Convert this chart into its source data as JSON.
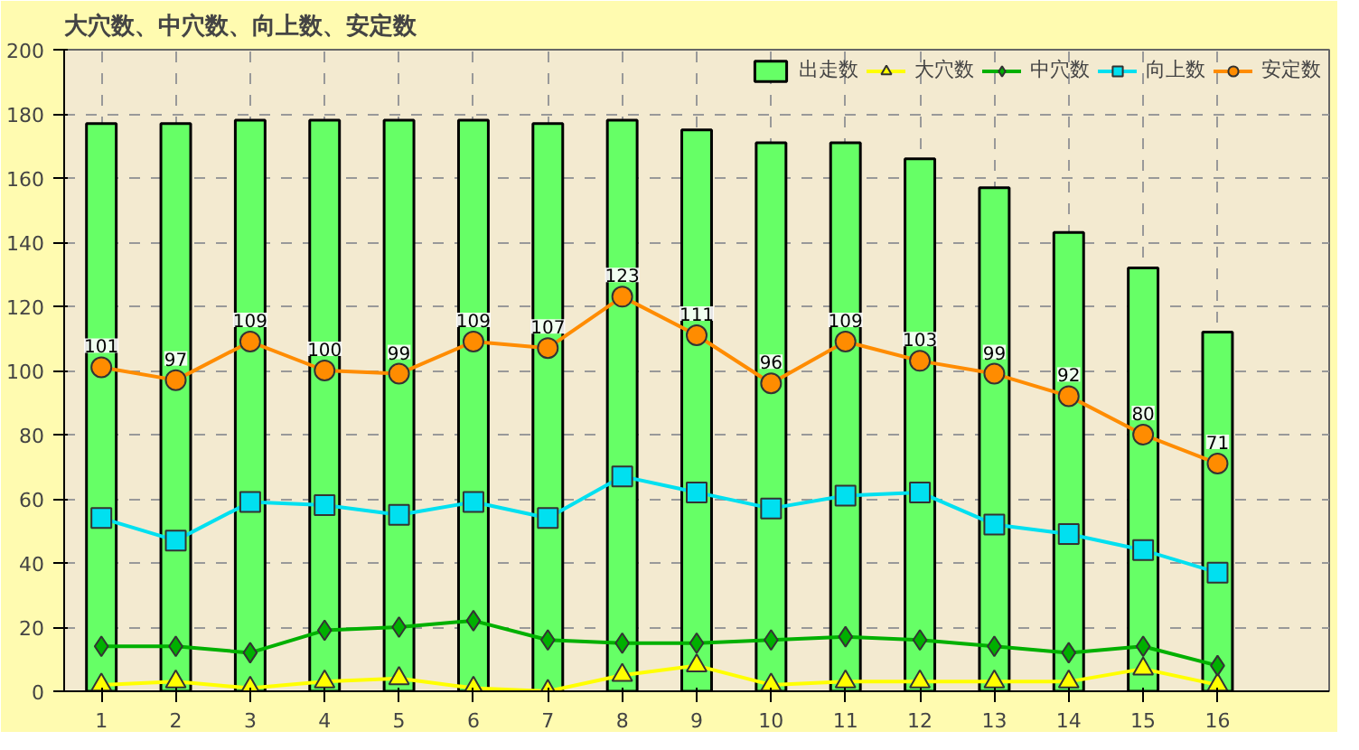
{
  "chart_data": {
    "type": "line",
    "title": "大穴数、中穴数、向上数、安定数",
    "x": [
      1,
      2,
      3,
      4,
      5,
      6,
      7,
      8,
      9,
      10,
      11,
      12,
      13,
      14,
      15,
      16
    ],
    "xlim": [
      0.5,
      17.5
    ],
    "xticks": [
      1,
      2,
      3,
      4,
      5,
      6,
      7,
      8,
      9,
      10,
      11,
      12,
      13,
      14,
      15,
      16
    ],
    "ylim": [
      0,
      200
    ],
    "yticks": [
      0,
      20,
      40,
      60,
      80,
      100,
      120,
      140,
      160,
      180,
      200
    ],
    "grid": true,
    "legend": "top right",
    "series": [
      {
        "name": "出走数",
        "type": "bar",
        "color": "#66ff66",
        "values": [
          177,
          177,
          178,
          178,
          178,
          178,
          177,
          178,
          175,
          171,
          171,
          166,
          157,
          143,
          132,
          112
        ]
      },
      {
        "name": "大穴数",
        "marker": "triangle",
        "color": "#ffff00",
        "values": [
          2,
          3,
          1,
          3,
          4,
          1,
          0,
          5,
          8,
          2,
          3,
          3,
          3,
          3,
          7,
          2
        ]
      },
      {
        "name": "中穴数",
        "marker": "diamond",
        "color": "#00b000",
        "values": [
          14,
          14,
          12,
          19,
          20,
          22,
          16,
          15,
          15,
          16,
          17,
          16,
          14,
          12,
          14,
          8
        ]
      },
      {
        "name": "向上数",
        "marker": "square",
        "color": "#00e0f0",
        "values": [
          54,
          47,
          59,
          58,
          55,
          59,
          54,
          67,
          62,
          57,
          61,
          62,
          52,
          49,
          44,
          37
        ]
      },
      {
        "name": "安定数",
        "marker": "circle",
        "color": "#ff8c00",
        "values": [
          101,
          97,
          109,
          100,
          99,
          109,
          107,
          123,
          111,
          96,
          109,
          103,
          99,
          92,
          80,
          71
        ],
        "data_labels": true
      }
    ]
  }
}
